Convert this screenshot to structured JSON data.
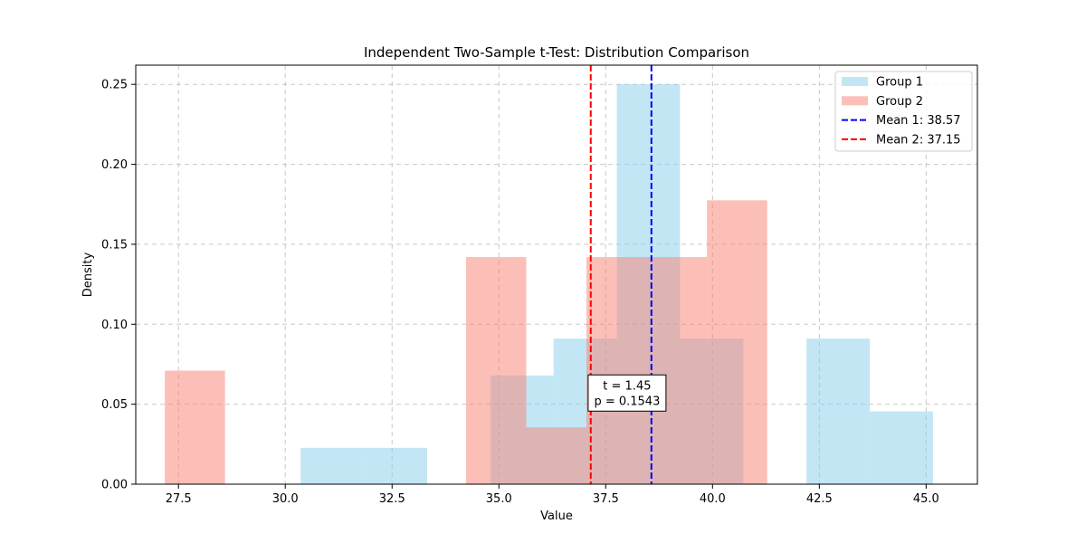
{
  "chart_data": {
    "type": "bar",
    "title": "Independent Two-Sample t-Test: Distribution Comparison",
    "xlabel": "Value",
    "ylabel": "Density",
    "xlim": [
      26.5,
      46.2
    ],
    "ylim": [
      0,
      0.262
    ],
    "xticks": [
      27.5,
      30.0,
      32.5,
      35.0,
      37.5,
      40.0,
      42.5,
      45.0
    ],
    "xtick_labels": [
      "27.5",
      "30.0",
      "32.5",
      "35.0",
      "37.5",
      "40.0",
      "42.5",
      "45.0"
    ],
    "yticks": [
      0.0,
      0.05,
      0.1,
      0.15,
      0.2,
      0.25
    ],
    "ytick_labels": [
      "0.00",
      "0.05",
      "0.10",
      "0.15",
      "0.20",
      "0.25"
    ],
    "grid": true,
    "legend_position": "top-right",
    "series": [
      {
        "name": "Group 1",
        "color": "#87ceeb",
        "alpha": 0.5,
        "bins": [
          {
            "x0": 30.36,
            "x1": 31.84,
            "value": 0.0227
          },
          {
            "x0": 31.84,
            "x1": 33.32,
            "value": 0.0227
          },
          {
            "x0": 33.32,
            "x1": 34.8,
            "value": 0.0
          },
          {
            "x0": 34.8,
            "x1": 36.28,
            "value": 0.068
          },
          {
            "x0": 36.28,
            "x1": 37.76,
            "value": 0.091
          },
          {
            "x0": 37.76,
            "x1": 39.24,
            "value": 0.25
          },
          {
            "x0": 39.24,
            "x1": 40.72,
            "value": 0.091
          },
          {
            "x0": 40.72,
            "x1": 42.2,
            "value": 0.0
          },
          {
            "x0": 42.2,
            "x1": 43.68,
            "value": 0.091
          },
          {
            "x0": 43.68,
            "x1": 45.16,
            "value": 0.0455
          }
        ]
      },
      {
        "name": "Group 2",
        "color": "#fa8072",
        "alpha": 0.5,
        "bins": [
          {
            "x0": 27.18,
            "x1": 28.59,
            "value": 0.071
          },
          {
            "x0": 28.59,
            "x1": 30.0,
            "value": 0.0
          },
          {
            "x0": 30.0,
            "x1": 31.41,
            "value": 0.0
          },
          {
            "x0": 31.41,
            "x1": 32.82,
            "value": 0.0
          },
          {
            "x0": 32.82,
            "x1": 34.23,
            "value": 0.0
          },
          {
            "x0": 34.23,
            "x1": 35.64,
            "value": 0.142
          },
          {
            "x0": 35.64,
            "x1": 37.05,
            "value": 0.0355
          },
          {
            "x0": 37.05,
            "x1": 38.46,
            "value": 0.142
          },
          {
            "x0": 38.46,
            "x1": 39.87,
            "value": 0.142
          },
          {
            "x0": 39.87,
            "x1": 41.28,
            "value": 0.1775
          }
        ]
      }
    ],
    "mean_lines": [
      {
        "name": "Mean 1: 38.57",
        "x": 38.57,
        "color": "#0000ff"
      },
      {
        "name": "Mean 2: 37.15",
        "x": 37.15,
        "color": "#ff0000"
      }
    ],
    "annotation": {
      "line1": "t = 1.45",
      "line2": "p = 0.1543",
      "x": 38.0,
      "y": 0.057
    }
  }
}
